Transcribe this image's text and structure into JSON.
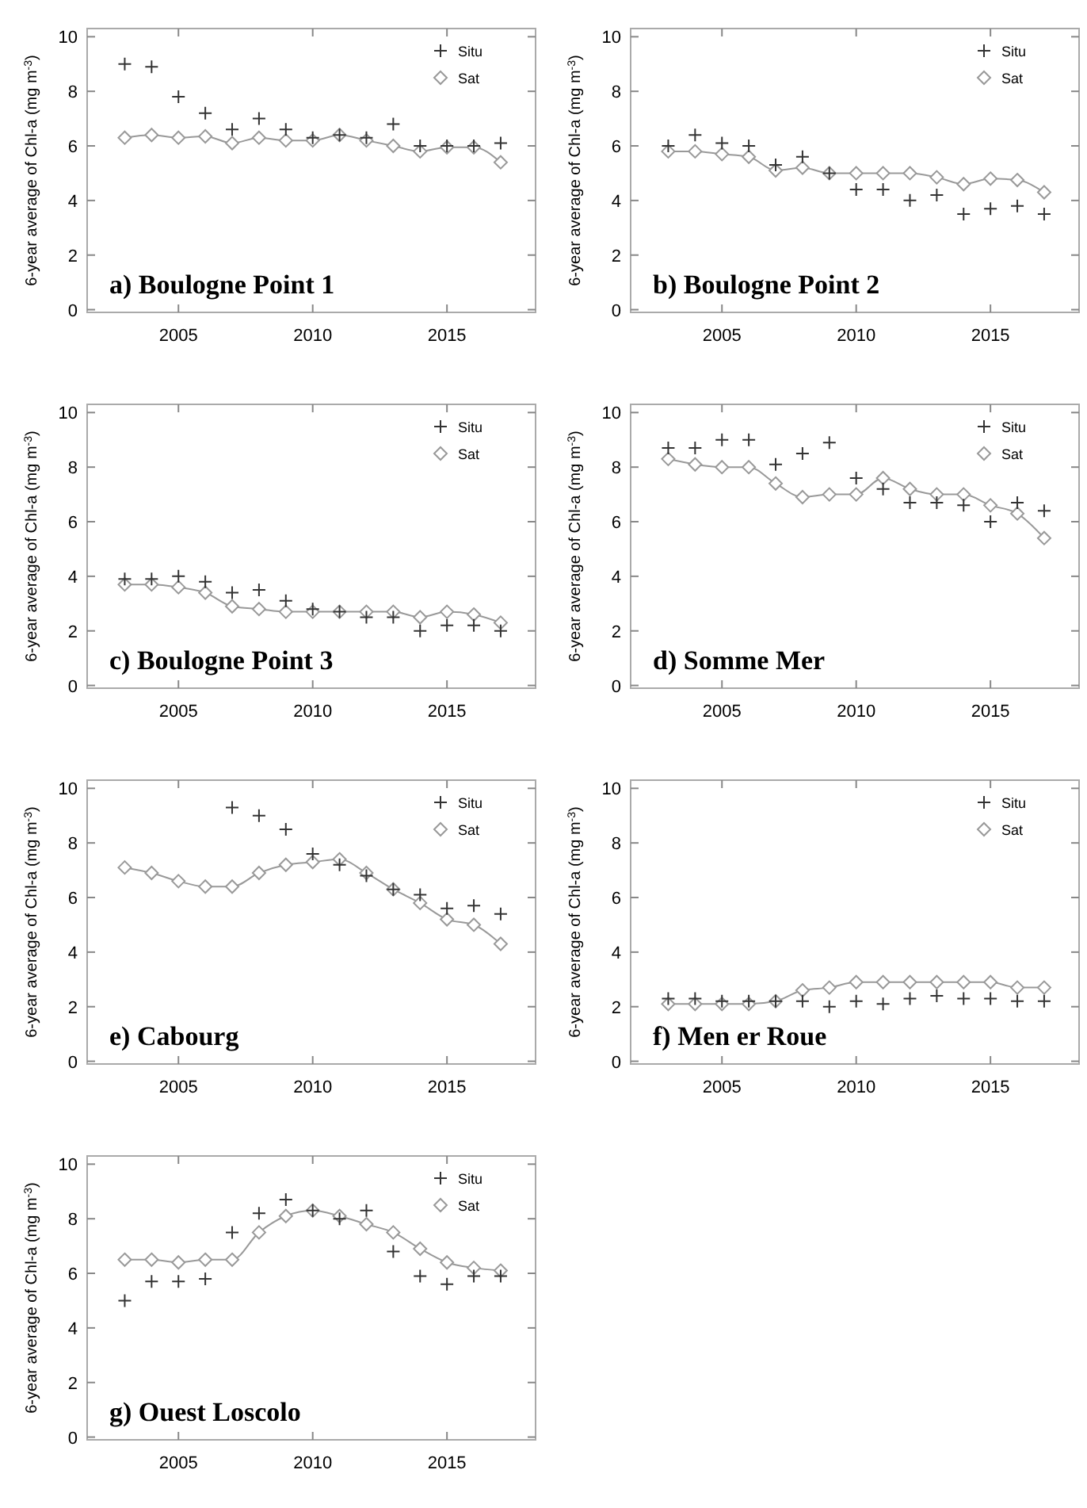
{
  "chart_data": [
    {
      "type": "line",
      "title": "a) Boulogne Point 1",
      "ylabel": "6-year average of Chl-a (mg m$^{-3}$)",
      "x": [
        2003,
        2004,
        2005,
        2006,
        2007,
        2008,
        2009,
        2010,
        2011,
        2012,
        2013,
        2014,
        2015,
        2016,
        2017
      ],
      "xlim": [
        2001.6,
        2018.3
      ],
      "ylim": [
        -0.1,
        10.3
      ],
      "xticks": [
        2005,
        2010,
        2015
      ],
      "yticks": [
        0,
        2,
        4,
        6,
        8,
        10
      ],
      "grid": false,
      "legend": "top right",
      "series": [
        {
          "name": "Situ",
          "type": "scatter",
          "marker": "cross",
          "color": "#333333",
          "values": [
            9.0,
            8.9,
            7.8,
            7.2,
            6.6,
            7.0,
            6.6,
            6.3,
            6.4,
            6.3,
            6.8,
            6.0,
            6.0,
            6.0,
            6.1
          ]
        },
        {
          "name": "Sat",
          "type": "line",
          "marker": "diamond",
          "color": "#999999",
          "values": [
            6.3,
            6.4,
            6.3,
            6.35,
            6.1,
            6.3,
            6.2,
            6.2,
            6.4,
            6.2,
            6.0,
            5.8,
            5.95,
            5.95,
            5.4
          ]
        }
      ]
    },
    {
      "type": "line",
      "title": "b) Boulogne Point 2",
      "ylabel": "6-year average of Chl-a (mg m$^{-3}$)",
      "x": [
        2003,
        2004,
        2005,
        2006,
        2007,
        2008,
        2009,
        2010,
        2011,
        2012,
        2013,
        2014,
        2015,
        2016,
        2017
      ],
      "xlim": [
        2001.6,
        2018.3
      ],
      "ylim": [
        -0.1,
        10.3
      ],
      "xticks": [
        2005,
        2010,
        2015
      ],
      "yticks": [
        0,
        2,
        4,
        6,
        8,
        10
      ],
      "grid": false,
      "legend": "top right",
      "series": [
        {
          "name": "Situ",
          "type": "scatter",
          "marker": "cross",
          "color": "#333333",
          "values": [
            6.0,
            6.4,
            6.1,
            6.0,
            5.3,
            5.6,
            5.0,
            4.4,
            4.4,
            4.0,
            4.2,
            3.5,
            3.7,
            3.8,
            3.5
          ]
        },
        {
          "name": "Sat",
          "type": "line",
          "marker": "diamond",
          "color": "#999999",
          "values": [
            5.8,
            5.8,
            5.7,
            5.6,
            5.1,
            5.2,
            5.0,
            5.0,
            5.0,
            5.0,
            4.85,
            4.6,
            4.8,
            4.75,
            4.3
          ]
        }
      ]
    },
    {
      "type": "line",
      "title": "c) Boulogne Point 3",
      "ylabel": "6-year average of Chl-a (mg m$^{-3}$)",
      "x": [
        2003,
        2004,
        2005,
        2006,
        2007,
        2008,
        2009,
        2010,
        2011,
        2012,
        2013,
        2014,
        2015,
        2016,
        2017
      ],
      "xlim": [
        2001.6,
        2018.3
      ],
      "ylim": [
        -0.1,
        10.3
      ],
      "xticks": [
        2005,
        2010,
        2015
      ],
      "yticks": [
        0,
        2,
        4,
        6,
        8,
        10
      ],
      "grid": false,
      "legend": "top right",
      "series": [
        {
          "name": "Situ",
          "type": "scatter",
          "marker": "cross",
          "color": "#333333",
          "values": [
            3.9,
            3.9,
            4.0,
            3.8,
            3.4,
            3.5,
            3.1,
            2.8,
            2.7,
            2.5,
            2.5,
            2.0,
            2.2,
            2.2,
            2.0
          ]
        },
        {
          "name": "Sat",
          "type": "line",
          "marker": "diamond",
          "color": "#999999",
          "values": [
            3.7,
            3.7,
            3.6,
            3.4,
            2.9,
            2.8,
            2.7,
            2.7,
            2.7,
            2.7,
            2.7,
            2.5,
            2.7,
            2.6,
            2.3
          ]
        }
      ]
    },
    {
      "type": "line",
      "title": "d) Somme Mer",
      "ylabel": "6-year average of Chl-a (mg m$^{-3}$)",
      "x": [
        2003,
        2004,
        2005,
        2006,
        2007,
        2008,
        2009,
        2010,
        2011,
        2012,
        2013,
        2014,
        2015,
        2016,
        2017
      ],
      "xlim": [
        2001.6,
        2018.3
      ],
      "ylim": [
        -0.1,
        10.3
      ],
      "xticks": [
        2005,
        2010,
        2015
      ],
      "yticks": [
        0,
        2,
        4,
        6,
        8,
        10
      ],
      "grid": false,
      "legend": "top right",
      "series": [
        {
          "name": "Situ",
          "type": "scatter",
          "marker": "cross",
          "color": "#333333",
          "values": [
            8.7,
            8.7,
            9.0,
            9.0,
            8.1,
            8.5,
            8.9,
            7.6,
            7.2,
            6.7,
            6.7,
            6.6,
            6.0,
            6.7,
            6.4
          ]
        },
        {
          "name": "Sat",
          "type": "line",
          "marker": "diamond",
          "color": "#999999",
          "values": [
            8.3,
            8.1,
            8.0,
            8.0,
            7.4,
            6.9,
            7.0,
            7.0,
            7.6,
            7.2,
            7.0,
            7.0,
            6.6,
            6.3,
            5.4
          ]
        }
      ]
    },
    {
      "type": "line",
      "title": "e) Cabourg",
      "ylabel": "6-year average of Chl-a (mg m$^{-3}$)",
      "x": [
        2003,
        2004,
        2005,
        2006,
        2007,
        2008,
        2009,
        2010,
        2011,
        2012,
        2013,
        2014,
        2015,
        2016,
        2017
      ],
      "xlim": [
        2001.6,
        2018.3
      ],
      "ylim": [
        -0.1,
        10.3
      ],
      "xticks": [
        2005,
        2010,
        2015
      ],
      "yticks": [
        0,
        2,
        4,
        6,
        8,
        10
      ],
      "grid": false,
      "legend": "top right",
      "series": [
        {
          "name": "Situ",
          "type": "scatter",
          "marker": "cross",
          "color": "#333333",
          "values": [
            null,
            null,
            null,
            null,
            9.3,
            9.0,
            8.5,
            7.6,
            7.2,
            6.8,
            6.3,
            6.1,
            5.6,
            5.7,
            5.4
          ]
        },
        {
          "name": "Sat",
          "type": "line",
          "marker": "diamond",
          "color": "#999999",
          "values": [
            7.1,
            6.9,
            6.6,
            6.4,
            6.4,
            6.9,
            7.2,
            7.3,
            7.4,
            6.9,
            6.3,
            5.8,
            5.2,
            5.0,
            4.3
          ]
        }
      ]
    },
    {
      "type": "line",
      "title": "f) Men er Roue",
      "ylabel": "6-year average of Chl-a (mg m$^{-3}$)",
      "x": [
        2003,
        2004,
        2005,
        2006,
        2007,
        2008,
        2009,
        2010,
        2011,
        2012,
        2013,
        2014,
        2015,
        2016,
        2017
      ],
      "xlim": [
        2001.6,
        2018.3
      ],
      "ylim": [
        -0.1,
        10.3
      ],
      "xticks": [
        2005,
        2010,
        2015
      ],
      "yticks": [
        0,
        2,
        4,
        6,
        8,
        10
      ],
      "grid": false,
      "legend": "top right",
      "series": [
        {
          "name": "Situ",
          "type": "scatter",
          "marker": "cross",
          "color": "#333333",
          "values": [
            2.3,
            2.3,
            2.2,
            2.2,
            2.2,
            2.2,
            2.0,
            2.2,
            2.1,
            2.3,
            2.4,
            2.3,
            2.3,
            2.2,
            2.2
          ]
        },
        {
          "name": "Sat",
          "type": "line",
          "marker": "diamond",
          "color": "#999999",
          "values": [
            2.1,
            2.1,
            2.1,
            2.1,
            2.2,
            2.6,
            2.7,
            2.9,
            2.9,
            2.9,
            2.9,
            2.9,
            2.9,
            2.7,
            2.7
          ]
        }
      ]
    },
    {
      "type": "line",
      "title": "g) Ouest Loscolo",
      "ylabel": "6-year average of Chl-a (mg m$^{-3}$)",
      "x": [
        2003,
        2004,
        2005,
        2006,
        2007,
        2008,
        2009,
        2010,
        2011,
        2012,
        2013,
        2014,
        2015,
        2016,
        2017
      ],
      "xlim": [
        2001.6,
        2018.3
      ],
      "ylim": [
        -0.1,
        10.3
      ],
      "xticks": [
        2005,
        2010,
        2015
      ],
      "yticks": [
        0,
        2,
        4,
        6,
        8,
        10
      ],
      "grid": false,
      "legend": "top right",
      "series": [
        {
          "name": "Situ",
          "type": "scatter",
          "marker": "cross",
          "color": "#333333",
          "values": [
            5.0,
            5.7,
            5.7,
            5.8,
            7.5,
            8.2,
            8.7,
            8.3,
            8.0,
            8.3,
            6.8,
            5.9,
            5.6,
            5.9,
            5.9
          ]
        },
        {
          "name": "Sat",
          "type": "line",
          "marker": "diamond",
          "color": "#999999",
          "values": [
            6.5,
            6.5,
            6.4,
            6.5,
            6.5,
            7.5,
            8.1,
            8.3,
            8.1,
            7.8,
            7.5,
            6.9,
            6.4,
            6.2,
            6.1
          ]
        }
      ]
    }
  ]
}
